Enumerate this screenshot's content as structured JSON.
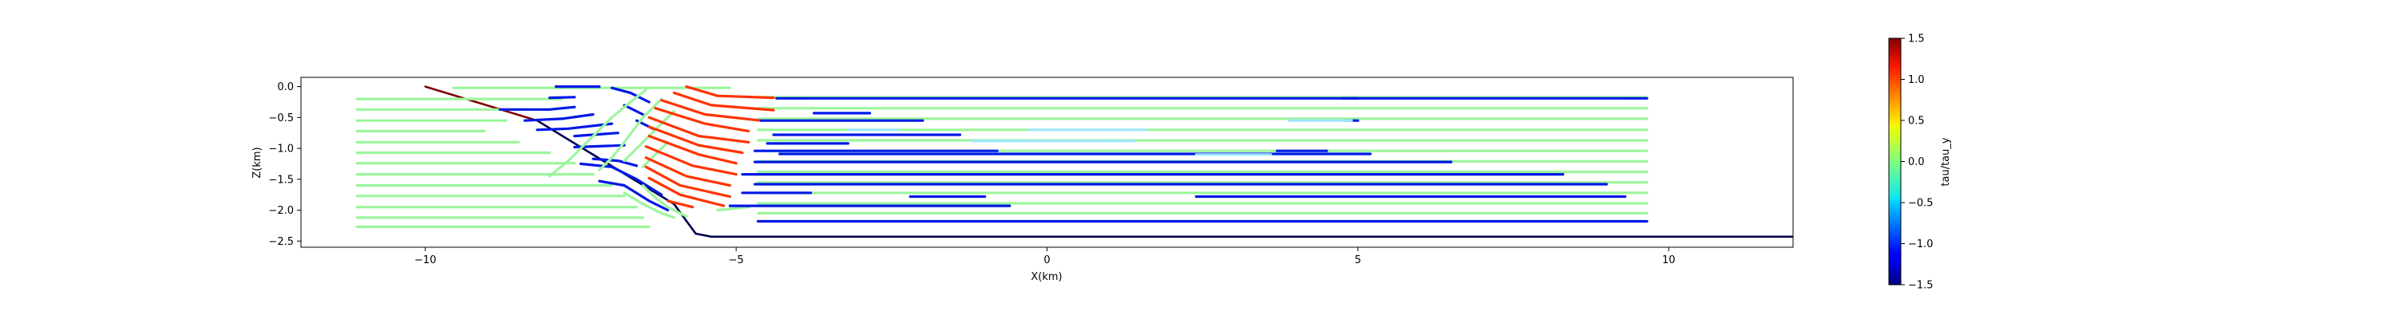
{
  "chart_data": {
    "type": "line",
    "xlabel": "X(km)",
    "ylabel": "Z(km)",
    "xlim": [
      -12,
      12
    ],
    "ylim": [
      -2.6,
      0.15
    ],
    "xticks": [
      -10,
      -5,
      0,
      5,
      10
    ],
    "xtick_labels": [
      "−10",
      "−5",
      "0",
      "5",
      "10"
    ],
    "yticks": [
      0.0,
      -0.5,
      -1.0,
      -1.5,
      -2.0,
      -2.5
    ],
    "ytick_labels": [
      "0.0",
      "−0.5",
      "−1.0",
      "−1.5",
      "−2.0",
      "−2.5"
    ],
    "grid": false,
    "colorbar": {
      "label": "tau/tau_y",
      "range": [
        -1.5,
        1.5
      ],
      "ticks": [
        1.5,
        1.0,
        0.5,
        0.0,
        -0.5,
        -1.0,
        -1.5
      ],
      "tick_labels": [
        "1.5",
        "1.0",
        "0.5",
        "0.0",
        "−0.5",
        "−1.0",
        "−1.5"
      ]
    },
    "colors": {
      "basement": "#000050",
      "dark_red": "#7f0000",
      "red": "#ff3300",
      "blue": "#0019e6",
      "green": "#9cf59c",
      "cyan": "#9fe6ff"
    },
    "series": [
      {
        "values_desc": "boundary",
        "color_value": 1.5,
        "points": [
          [
            -10,
            0.0
          ],
          [
            -8.2,
            -0.55
          ]
        ]
      },
      {
        "color_value": -1.5,
        "points": [
          [
            -8.2,
            -0.55
          ],
          [
            -6.0,
            -1.9
          ],
          [
            -5.65,
            -2.38
          ],
          [
            -5.4,
            -2.43
          ],
          [
            12,
            -2.43
          ]
        ]
      },
      {
        "color_value": -1.5,
        "points": [
          [
            -4.65,
            -2.18
          ],
          [
            9.65,
            -2.18
          ]
        ]
      },
      {
        "color_value": 0.0,
        "points": [
          [
            -9.55,
            -0.02
          ],
          [
            -5.1,
            -0.02
          ]
        ]
      },
      {
        "color_value": 0.0,
        "points": [
          [
            -11.1,
            -0.2
          ],
          [
            -7.8,
            -0.2
          ]
        ]
      },
      {
        "color_value": 0.0,
        "points": [
          [
            -11.1,
            -0.37
          ],
          [
            -8.4,
            -0.37
          ]
        ]
      },
      {
        "color_value": 0.0,
        "points": [
          [
            -11.1,
            -0.55
          ],
          [
            -8.7,
            -0.55
          ]
        ]
      },
      {
        "color_value": 0.0,
        "points": [
          [
            -11.1,
            -0.72
          ],
          [
            -9.05,
            -0.72
          ]
        ]
      },
      {
        "color_value": 0.0,
        "points": [
          [
            -11.1,
            -0.9
          ],
          [
            -8.5,
            -0.9
          ]
        ]
      },
      {
        "color_value": 0.0,
        "points": [
          [
            -11.1,
            -1.07
          ],
          [
            -8.0,
            -1.07
          ]
        ]
      },
      {
        "color_value": 0.0,
        "points": [
          [
            -11.1,
            -1.24
          ],
          [
            -7.6,
            -1.24
          ]
        ]
      },
      {
        "color_value": 0.0,
        "points": [
          [
            -11.1,
            -1.42
          ],
          [
            -7.3,
            -1.42
          ]
        ]
      },
      {
        "color_value": 0.0,
        "points": [
          [
            -11.1,
            -1.6
          ],
          [
            -7.0,
            -1.6
          ]
        ]
      },
      {
        "color_value": 0.0,
        "points": [
          [
            -11.1,
            -1.77
          ],
          [
            -6.8,
            -1.77
          ]
        ]
      },
      {
        "color_value": 0.0,
        "points": [
          [
            -11.1,
            -1.95
          ],
          [
            -6.6,
            -1.95
          ]
        ]
      },
      {
        "color_value": 0.0,
        "points": [
          [
            -11.1,
            -2.12
          ],
          [
            -6.5,
            -2.12
          ]
        ]
      },
      {
        "color_value": 0.0,
        "points": [
          [
            -11.1,
            -2.27
          ],
          [
            -6.4,
            -2.27
          ]
        ]
      },
      {
        "color_value": -1.5,
        "points": [
          [
            -7.9,
            0.0
          ],
          [
            -7.2,
            0.0
          ]
        ]
      },
      {
        "color_value": -1.5,
        "points": [
          [
            -8.0,
            -0.18
          ],
          [
            -7.6,
            -0.17
          ]
        ]
      },
      {
        "color_value": -1.5,
        "points": [
          [
            -8.8,
            -0.37
          ],
          [
            -8.0,
            -0.37
          ],
          [
            -7.6,
            -0.33
          ]
        ]
      },
      {
        "color_value": -1.5,
        "points": [
          [
            -8.4,
            -0.55
          ],
          [
            -7.8,
            -0.52
          ],
          [
            -7.3,
            -0.45
          ]
        ]
      },
      {
        "color_value": -1.5,
        "points": [
          [
            -8.2,
            -0.7
          ],
          [
            -7.7,
            -0.68
          ],
          [
            -7.0,
            -0.6
          ]
        ]
      },
      {
        "color_value": -1.5,
        "points": [
          [
            -7.6,
            -0.8
          ],
          [
            -6.9,
            -0.75
          ]
        ]
      },
      {
        "color_value": -1.5,
        "points": [
          [
            -7.6,
            -0.98
          ],
          [
            -6.8,
            -0.95
          ]
        ]
      },
      {
        "color_value": -1.5,
        "points": [
          [
            -7.3,
            -1.17
          ],
          [
            -6.9,
            -1.2
          ],
          [
            -6.6,
            -1.28
          ]
        ]
      },
      {
        "color_value": -1.5,
        "points": [
          [
            -7.5,
            -1.25
          ],
          [
            -7.0,
            -1.3
          ],
          [
            -6.6,
            -1.5
          ],
          [
            -6.2,
            -1.75
          ]
        ]
      },
      {
        "color_value": -1.5,
        "points": [
          [
            -7.2,
            -1.53
          ],
          [
            -6.8,
            -1.6
          ],
          [
            -6.4,
            -1.85
          ],
          [
            -6.1,
            -2.0
          ]
        ]
      },
      {
        "color_value": -1.5,
        "points": [
          [
            -7.0,
            -0.02
          ],
          [
            -6.7,
            -0.1
          ],
          [
            -6.4,
            -0.25
          ]
        ]
      },
      {
        "color_value": -1.5,
        "points": [
          [
            -6.8,
            -0.3
          ],
          [
            -6.5,
            -0.45
          ]
        ]
      },
      {
        "color_value": -1.5,
        "points": [
          [
            -6.6,
            -0.55
          ],
          [
            -6.3,
            -0.7
          ]
        ]
      },
      {
        "color_value": 0.0,
        "points": [
          [
            -6.45,
            -0.05
          ],
          [
            -6.7,
            -0.25
          ],
          [
            -7.0,
            -0.5
          ],
          [
            -7.4,
            -0.9
          ],
          [
            -7.7,
            -1.2
          ],
          [
            -8.0,
            -1.45
          ]
        ]
      },
      {
        "color_value": 0.0,
        "points": [
          [
            -6.2,
            -0.2
          ],
          [
            -6.5,
            -0.5
          ],
          [
            -6.8,
            -0.9
          ],
          [
            -7.0,
            -1.15
          ],
          [
            -7.2,
            -1.35
          ]
        ]
      },
      {
        "color_value": 0.0,
        "points": [
          [
            -6.0,
            -0.4
          ],
          [
            -6.3,
            -0.7
          ],
          [
            -6.6,
            -1.0
          ],
          [
            -6.8,
            -1.2
          ]
        ]
      },
      {
        "color_value": 0.0,
        "points": [
          [
            -6.1,
            -0.9
          ],
          [
            -6.3,
            -1.1
          ],
          [
            -6.5,
            -1.3
          ]
        ]
      },
      {
        "color_value": 0.0,
        "points": [
          [
            -6.5,
            -1.6
          ],
          [
            -6.3,
            -1.8
          ],
          [
            -6.1,
            -1.95
          ],
          [
            -5.8,
            -2.1
          ]
        ]
      },
      {
        "color_value": 0.0,
        "points": [
          [
            -6.8,
            -1.72
          ],
          [
            -6.5,
            -1.9
          ],
          [
            -6.2,
            -2.05
          ],
          [
            -6.0,
            -2.12
          ]
        ]
      },
      {
        "color_value": 0.0,
        "points": [
          [
            -5.3,
            -2.0
          ],
          [
            -5.1,
            -1.98
          ],
          [
            -4.8,
            -1.95
          ]
        ]
      },
      {
        "color_value": 0.0,
        "points": [
          [
            -4.65,
            -0.17
          ],
          [
            9.65,
            -0.17
          ]
        ]
      },
      {
        "color_value": 0.0,
        "points": [
          [
            -4.65,
            -0.35
          ],
          [
            9.65,
            -0.35
          ]
        ]
      },
      {
        "color_value": 0.0,
        "points": [
          [
            -4.65,
            -0.52
          ],
          [
            9.65,
            -0.52
          ]
        ]
      },
      {
        "color_value": 0.0,
        "points": [
          [
            -4.65,
            -0.7
          ],
          [
            9.65,
            -0.7
          ]
        ]
      },
      {
        "color_value": 0.0,
        "points": [
          [
            -4.65,
            -0.87
          ],
          [
            9.65,
            -0.87
          ]
        ]
      },
      {
        "color_value": 0.0,
        "points": [
          [
            -4.65,
            -1.04
          ],
          [
            9.65,
            -1.04
          ]
        ]
      },
      {
        "color_value": 0.0,
        "points": [
          [
            -4.65,
            -1.21
          ],
          [
            9.65,
            -1.21
          ]
        ]
      },
      {
        "color_value": 0.0,
        "points": [
          [
            -4.65,
            -1.38
          ],
          [
            9.65,
            -1.38
          ]
        ]
      },
      {
        "color_value": 0.0,
        "points": [
          [
            -4.65,
            -1.55
          ],
          [
            9.65,
            -1.55
          ]
        ]
      },
      {
        "color_value": 0.0,
        "points": [
          [
            -4.65,
            -1.72
          ],
          [
            9.65,
            -1.72
          ]
        ]
      },
      {
        "color_value": 0.0,
        "points": [
          [
            -4.65,
            -1.89
          ],
          [
            9.65,
            -1.89
          ]
        ]
      },
      {
        "color_value": 0.0,
        "points": [
          [
            -4.65,
            -2.05
          ],
          [
            9.65,
            -2.05
          ]
        ]
      },
      {
        "color_value": 1.2,
        "points": [
          [
            -5.8,
            0.0
          ],
          [
            -5.3,
            -0.15
          ],
          [
            -4.4,
            -0.18
          ]
        ]
      },
      {
        "color_value": 1.2,
        "points": [
          [
            -6.0,
            -0.1
          ],
          [
            -5.4,
            -0.3
          ],
          [
            -4.4,
            -0.38
          ]
        ]
      },
      {
        "color_value": 1.2,
        "points": [
          [
            -6.2,
            -0.22
          ],
          [
            -5.5,
            -0.45
          ],
          [
            -4.6,
            -0.55
          ]
        ]
      },
      {
        "color_value": 1.2,
        "points": [
          [
            -6.3,
            -0.35
          ],
          [
            -5.5,
            -0.6
          ],
          [
            -4.8,
            -0.72
          ]
        ]
      },
      {
        "color_value": 1.2,
        "points": [
          [
            -6.4,
            -0.5
          ],
          [
            -5.6,
            -0.8
          ],
          [
            -4.8,
            -0.9
          ]
        ]
      },
      {
        "color_value": 1.2,
        "points": [
          [
            -6.4,
            -0.65
          ],
          [
            -5.6,
            -0.95
          ],
          [
            -4.9,
            -1.07
          ]
        ]
      },
      {
        "color_value": 1.2,
        "points": [
          [
            -6.4,
            -0.8
          ],
          [
            -5.6,
            -1.1
          ],
          [
            -5.0,
            -1.24
          ]
        ]
      },
      {
        "color_value": 1.2,
        "points": [
          [
            -6.45,
            -0.97
          ],
          [
            -5.7,
            -1.28
          ],
          [
            -5.0,
            -1.42
          ]
        ]
      },
      {
        "color_value": 1.2,
        "points": [
          [
            -6.45,
            -1.15
          ],
          [
            -5.8,
            -1.45
          ],
          [
            -5.1,
            -1.6
          ]
        ]
      },
      {
        "color_value": 1.2,
        "points": [
          [
            -6.45,
            -1.3
          ],
          [
            -5.9,
            -1.6
          ],
          [
            -5.1,
            -1.78
          ]
        ]
      },
      {
        "color_value": 1.2,
        "points": [
          [
            -6.4,
            -1.48
          ],
          [
            -5.9,
            -1.75
          ],
          [
            -5.2,
            -1.93
          ]
        ]
      },
      {
        "color_value": 1.2,
        "points": [
          [
            -6.1,
            -1.85
          ],
          [
            -5.7,
            -1.95
          ]
        ]
      },
      {
        "color_value": -1.5,
        "points": [
          [
            -4.35,
            -0.19
          ],
          [
            9.65,
            -0.19
          ]
        ]
      },
      {
        "color_value": -1.5,
        "points": [
          [
            -3.75,
            -0.43
          ],
          [
            -2.85,
            -0.43
          ]
        ]
      },
      {
        "color_value": -1.5,
        "points": [
          [
            -4.6,
            -0.55
          ],
          [
            -2.0,
            -0.55
          ]
        ]
      },
      {
        "color_value": -1.5,
        "points": [
          [
            -4.4,
            -0.78
          ],
          [
            -1.4,
            -0.78
          ]
        ]
      },
      {
        "color_value": -1.5,
        "points": [
          [
            -4.5,
            -0.92
          ],
          [
            -3.2,
            -0.92
          ]
        ]
      },
      {
        "color_value": -1.5,
        "points": [
          [
            -4.7,
            -1.04
          ],
          [
            -0.8,
            -1.04
          ]
        ]
      },
      {
        "color_value": -1.5,
        "points": [
          [
            -4.3,
            -1.09
          ],
          [
            5.2,
            -1.09
          ]
        ]
      },
      {
        "color_value": -1.5,
        "points": [
          [
            -4.7,
            -1.22
          ],
          [
            6.5,
            -1.22
          ]
        ]
      },
      {
        "color_value": -1.5,
        "points": [
          [
            -4.9,
            -1.42
          ],
          [
            8.3,
            -1.42
          ]
        ]
      },
      {
        "color_value": -1.5,
        "points": [
          [
            -4.7,
            -1.58
          ],
          [
            9.0,
            -1.58
          ]
        ]
      },
      {
        "color_value": -1.5,
        "points": [
          [
            -4.9,
            -1.72
          ],
          [
            -3.8,
            -1.72
          ]
        ]
      },
      {
        "color_value": -1.5,
        "points": [
          [
            -2.2,
            -1.78
          ],
          [
            -1.0,
            -1.78
          ]
        ]
      },
      {
        "color_value": -1.5,
        "points": [
          [
            2.4,
            -1.78
          ],
          [
            9.3,
            -1.78
          ]
        ]
      },
      {
        "color_value": -1.5,
        "points": [
          [
            -5.1,
            -1.93
          ],
          [
            -0.6,
            -1.93
          ]
        ]
      },
      {
        "color_value": -1.5,
        "points": [
          [
            4.75,
            -0.19
          ],
          [
            5.0,
            -0.19
          ]
        ]
      },
      {
        "color_value": -1.5,
        "points": [
          [
            4.8,
            -0.55
          ],
          [
            5.0,
            -0.55
          ]
        ]
      },
      {
        "color_value": -1.5,
        "points": [
          [
            3.7,
            -1.04
          ],
          [
            4.5,
            -1.04
          ]
        ]
      },
      {
        "color_value": -0.5,
        "points": [
          [
            -0.3,
            -0.7
          ],
          [
            1.6,
            -0.7
          ]
        ]
      },
      {
        "color_value": -0.5,
        "points": [
          [
            -1.2,
            -0.88
          ],
          [
            1.4,
            -0.88
          ]
        ]
      },
      {
        "color_value": -0.5,
        "points": [
          [
            2.4,
            -1.1
          ],
          [
            3.6,
            -1.1
          ]
        ]
      },
      {
        "color_value": -0.5,
        "points": [
          [
            3.9,
            -0.55
          ],
          [
            4.9,
            -0.55
          ]
        ]
      },
      {
        "color_value": -0.5,
        "points": [
          [
            -3.2,
            -0.7
          ],
          [
            -2.4,
            -0.7
          ]
        ]
      }
    ]
  }
}
